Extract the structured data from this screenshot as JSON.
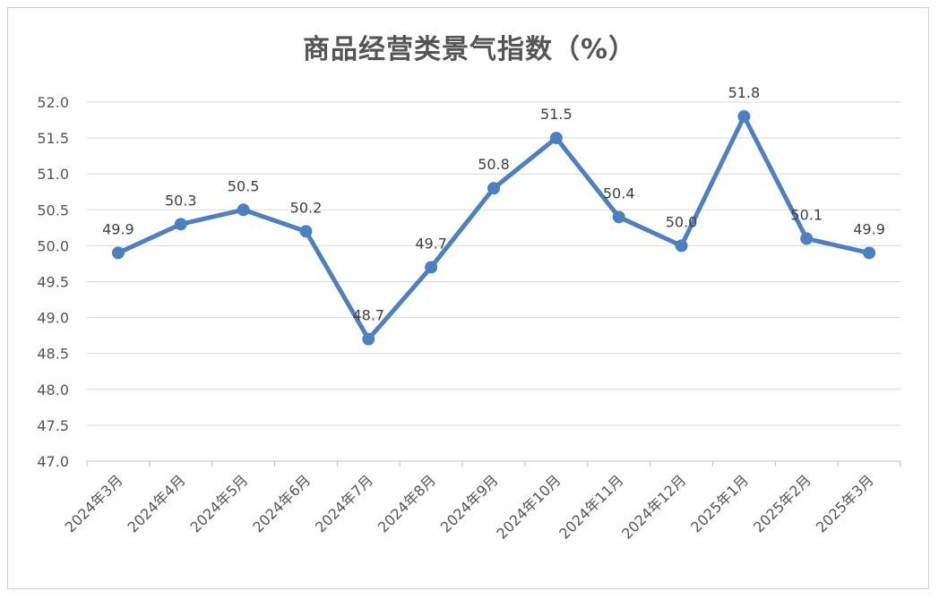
{
  "chart_data": {
    "type": "line",
    "title": "商品经营类景气指数（%）",
    "categories": [
      "2024年3月",
      "2024年4月",
      "2024年5月",
      "2024年6月",
      "2024年7月",
      "2024年8月",
      "2024年9月",
      "2024年10月",
      "2024年11月",
      "2024年12月",
      "2025年1月",
      "2025年2月",
      "2025年3月"
    ],
    "series": [
      {
        "values": [
          49.9,
          50.3,
          50.5,
          50.2,
          48.7,
          49.7,
          50.8,
          51.5,
          50.4,
          50.0,
          51.8,
          50.1,
          49.9
        ],
        "labels": [
          "49.9",
          "50.3",
          "50.5",
          "50.2",
          "48.7",
          "49.7",
          "50.8",
          "51.5",
          "50.4",
          "50.0",
          "51.8",
          "50.1",
          "49.9"
        ],
        "color": "#4e7fbf"
      }
    ],
    "ylim": [
      47.0,
      52.0
    ],
    "yticks": [
      "47.0",
      "47.5",
      "48.0",
      "48.5",
      "49.0",
      "49.5",
      "50.0",
      "50.5",
      "51.0",
      "51.5",
      "52.0"
    ],
    "grid": true,
    "legend": "none"
  }
}
